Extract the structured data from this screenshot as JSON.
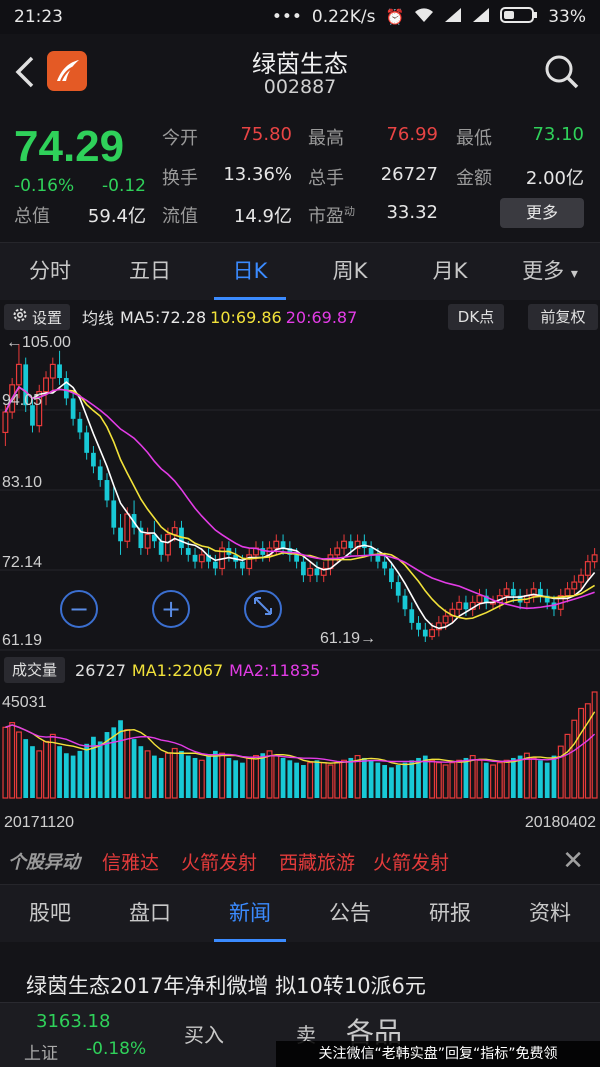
{
  "status_bar": {
    "time": "21:23",
    "dots": "•••",
    "net_speed": "0.22K/s",
    "battery": "33%"
  },
  "header": {
    "name": "绿茵生态",
    "code": "002887"
  },
  "quote": {
    "price": "74.29",
    "change_pct": "-0.16%",
    "change_abs": "-0.12",
    "rows": [
      [
        {
          "label": "今开",
          "value": "75.80",
          "color": "red"
        },
        {
          "label": "最高",
          "value": "76.99",
          "color": "red"
        },
        {
          "label": "最低",
          "value": "73.10",
          "color": "green"
        }
      ],
      [
        {
          "label": "换手",
          "value": "13.36%",
          "color": "white"
        },
        {
          "label": "总手",
          "value": "26727",
          "color": "white"
        },
        {
          "label": "金额",
          "value": "2.00亿",
          "color": "white"
        }
      ]
    ],
    "total_value_label": "总值",
    "total_value": "59.4亿",
    "float_value_label": "流值",
    "float_value": "14.9亿",
    "pe_label": "市盈",
    "pe_sup": "动",
    "pe_value": "33.32",
    "more_label": "更多"
  },
  "period_tabs": [
    "分时",
    "五日",
    "日K",
    "周K",
    "月K",
    "更多"
  ],
  "ma_bar": {
    "settings": "设置",
    "label": "均线",
    "ma5": "MA5:72.28",
    "ma10": "10:69.86",
    "ma20": "20:69.87",
    "dk": "DK点",
    "fq": "前复权"
  },
  "kline": {
    "y_labels": [
      "94.05",
      "83.10",
      "72.14",
      "61.19"
    ],
    "high_marker": "←105.00",
    "low_marker": "61.19→",
    "colors": {
      "up": "#e83a3a",
      "down": "#18c9d6",
      "ma5": "#ffffff",
      "ma10": "#f2e23a",
      "ma20": "#e33ce6"
    }
  },
  "volume_bar": {
    "label": "成交量",
    "current": "26727",
    "ma1": "MA1:22067",
    "ma2": "MA2:11835",
    "max_label": "45031"
  },
  "chart_data": {
    "type": "candlestick",
    "ylim": [
      61.19,
      105.0
    ],
    "x_start": "20171120",
    "x_end": "20180402",
    "candles": [
      [
        92,
        96,
        90,
        95
      ],
      [
        95,
        100,
        94,
        99
      ],
      [
        99,
        105,
        97,
        102
      ],
      [
        102,
        103,
        95,
        96
      ],
      [
        96,
        97,
        92,
        93
      ],
      [
        93,
        99,
        92,
        98
      ],
      [
        98,
        101,
        96,
        100
      ],
      [
        100,
        103,
        98,
        102
      ],
      [
        102,
        104,
        99,
        100
      ],
      [
        100,
        101,
        96,
        97
      ],
      [
        97,
        98,
        93,
        94
      ],
      [
        94,
        95,
        91,
        92
      ],
      [
        92,
        93,
        88,
        89
      ],
      [
        89,
        90,
        86,
        87
      ],
      [
        87,
        88,
        84,
        85
      ],
      [
        85,
        86,
        81,
        82
      ],
      [
        82,
        84,
        77,
        78
      ],
      [
        78,
        80,
        74,
        76
      ],
      [
        76,
        81,
        75,
        80
      ],
      [
        80,
        82,
        77,
        78
      ],
      [
        78,
        79,
        74,
        75
      ],
      [
        75,
        78,
        74,
        77
      ],
      [
        77,
        79,
        75,
        76
      ],
      [
        76,
        77,
        73,
        74
      ],
      [
        74,
        78,
        73,
        77
      ],
      [
        77,
        79,
        76,
        78
      ],
      [
        78,
        79,
        74,
        75
      ],
      [
        75,
        76,
        73,
        74
      ],
      [
        74,
        75,
        72,
        73
      ],
      [
        73,
        75,
        72,
        74
      ],
      [
        74,
        75,
        72,
        73
      ],
      [
        73,
        74,
        71,
        72
      ],
      [
        72,
        76,
        71,
        75
      ],
      [
        75,
        76,
        73,
        74
      ],
      [
        74,
        75,
        72,
        73
      ],
      [
        73,
        74,
        71,
        72
      ],
      [
        72,
        75,
        71,
        74
      ],
      [
        74,
        76,
        73,
        75
      ],
      [
        75,
        76,
        73,
        74
      ],
      [
        74,
        76,
        73,
        75
      ],
      [
        75,
        77,
        74,
        76
      ],
      [
        76,
        77,
        74,
        75
      ],
      [
        75,
        76,
        73,
        74
      ],
      [
        74,
        75,
        72,
        73
      ],
      [
        73,
        74,
        70,
        71
      ],
      [
        71,
        73,
        70,
        72
      ],
      [
        72,
        73,
        70,
        71
      ],
      [
        71,
        73,
        70,
        72
      ],
      [
        72,
        75,
        71,
        74
      ],
      [
        74,
        76,
        73,
        75
      ],
      [
        75,
        77,
        74,
        76
      ],
      [
        76,
        77,
        74,
        75
      ],
      [
        75,
        77,
        74,
        76
      ],
      [
        76,
        77,
        74,
        75
      ],
      [
        75,
        76,
        73,
        74
      ],
      [
        74,
        75,
        72,
        73
      ],
      [
        73,
        74,
        71,
        72
      ],
      [
        72,
        73,
        69,
        70
      ],
      [
        70,
        71,
        67,
        68
      ],
      [
        68,
        69,
        65,
        66
      ],
      [
        66,
        67,
        63,
        64
      ],
      [
        64,
        65,
        62,
        63
      ],
      [
        63,
        64,
        61.19,
        62
      ],
      [
        62,
        64,
        61.5,
        63
      ],
      [
        63,
        65,
        62,
        64
      ],
      [
        64,
        66,
        63,
        65
      ],
      [
        65,
        67,
        64,
        66
      ],
      [
        66,
        68,
        65,
        67
      ],
      [
        67,
        68,
        65,
        66
      ],
      [
        66,
        68,
        65,
        67
      ],
      [
        67,
        69,
        66,
        68
      ],
      [
        68,
        69,
        66,
        67
      ],
      [
        67,
        68,
        66,
        67
      ],
      [
        67,
        69,
        66,
        68
      ],
      [
        68,
        70,
        67,
        69
      ],
      [
        69,
        70,
        67,
        68
      ],
      [
        68,
        69,
        66,
        67
      ],
      [
        67,
        69,
        66,
        68
      ],
      [
        68,
        70,
        67,
        69
      ],
      [
        69,
        70,
        67,
        68
      ],
      [
        68,
        69,
        66,
        67
      ],
      [
        67,
        68,
        65,
        66
      ],
      [
        66,
        69,
        65,
        68
      ],
      [
        68,
        70,
        67,
        69
      ],
      [
        69,
        71,
        68,
        70
      ],
      [
        70,
        72,
        69,
        71
      ],
      [
        71,
        74,
        70,
        73
      ],
      [
        73,
        75,
        72,
        74
      ]
    ],
    "volume": [
      30,
      32,
      28,
      25,
      22,
      20,
      24,
      27,
      22,
      19,
      18,
      20,
      23,
      26,
      24,
      28,
      30,
      33,
      29,
      25,
      22,
      20,
      18,
      17,
      19,
      21,
      20,
      18,
      17,
      16,
      18,
      20,
      19,
      17,
      16,
      15,
      17,
      18,
      19,
      20,
      18,
      17,
      16,
      15,
      14,
      15,
      16,
      15,
      14,
      15,
      16,
      17,
      18,
      17,
      16,
      15,
      14,
      13,
      14,
      15,
      16,
      17,
      18,
      16,
      15,
      14,
      15,
      16,
      17,
      18,
      16,
      15,
      14,
      15,
      16,
      17,
      18,
      19,
      17,
      16,
      15,
      18,
      22,
      27,
      33,
      38,
      40,
      45
    ]
  },
  "alert_bar": {
    "logo": "个股异动",
    "items": [
      "信雅达",
      "火箭发射",
      "西藏旅游",
      "火箭发射"
    ],
    "close": "✕"
  },
  "info_tabs": [
    "股吧",
    "盘口",
    "新闻",
    "公告",
    "研报",
    "资料"
  ],
  "news": {
    "headline": "绿茵生态2017年净利微增 拟10转10派6元"
  },
  "bottom_bar": {
    "index_value": "3163.18",
    "index_name": "上证",
    "index_change": "-0.18%",
    "buy": "买入",
    "sell": "卖",
    "banner": "各品",
    "watermark": "关注微信“老韩实盘”回复“指标”免费领"
  }
}
